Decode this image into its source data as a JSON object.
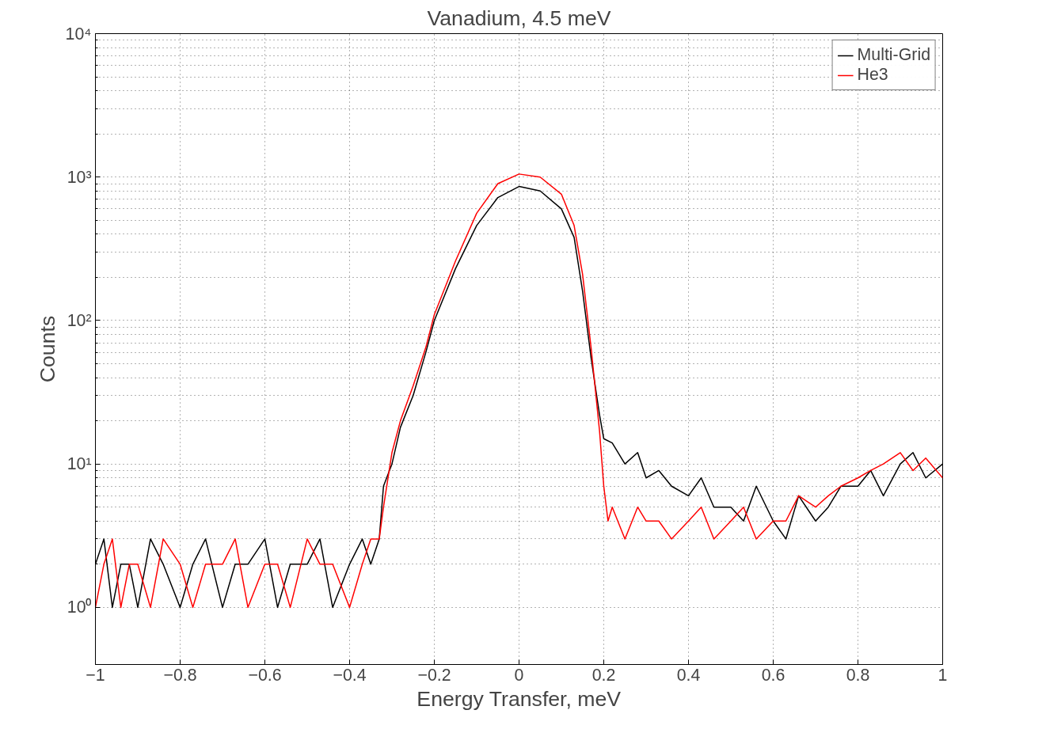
{
  "chart_data": {
    "type": "line",
    "title": "Vanadium, 4.5 meV",
    "xlabel": "Energy Transfer, meV",
    "ylabel": "Counts",
    "series": [
      {
        "name": "Multi-Grid",
        "color": "#000000",
        "x": [
          -1,
          -0.98,
          -0.96,
          -0.94,
          -0.92,
          -0.9,
          -0.87,
          -0.84,
          -0.8,
          -0.77,
          -0.74,
          -0.7,
          -0.67,
          -0.64,
          -0.6,
          -0.57,
          -0.54,
          -0.5,
          -0.47,
          -0.44,
          -0.4,
          -0.37,
          -0.35,
          -0.33,
          -0.32,
          -0.3,
          -0.28,
          -0.25,
          -0.22,
          -0.2,
          -0.15,
          -0.1,
          -0.05,
          0,
          0.05,
          0.1,
          0.13,
          0.15,
          0.17,
          0.19,
          0.2,
          0.22,
          0.25,
          0.28,
          0.3,
          0.33,
          0.36,
          0.4,
          0.43,
          0.46,
          0.5,
          0.53,
          0.56,
          0.6,
          0.63,
          0.66,
          0.7,
          0.73,
          0.76,
          0.8,
          0.83,
          0.86,
          0.9,
          0.93,
          0.96,
          1
        ],
        "values": [
          2,
          3,
          1,
          2,
          2,
          1,
          3,
          2,
          1,
          2,
          3,
          1,
          2,
          2,
          3,
          1,
          2,
          2,
          3,
          1,
          2,
          3,
          2,
          3,
          7,
          10,
          18,
          30,
          60,
          100,
          230,
          460,
          720,
          860,
          800,
          600,
          380,
          160,
          55,
          22,
          15,
          14,
          10,
          12,
          8,
          9,
          7,
          6,
          8,
          5,
          5,
          4,
          7,
          4,
          3,
          6,
          4,
          5,
          7,
          7,
          9,
          6,
          10,
          12,
          8,
          10
        ]
      },
      {
        "name": "He3",
        "color": "#ff0000",
        "x": [
          -1,
          -0.98,
          -0.96,
          -0.94,
          -0.92,
          -0.9,
          -0.87,
          -0.84,
          -0.8,
          -0.77,
          -0.74,
          -0.7,
          -0.67,
          -0.64,
          -0.6,
          -0.57,
          -0.54,
          -0.5,
          -0.47,
          -0.44,
          -0.4,
          -0.37,
          -0.35,
          -0.33,
          -0.32,
          -0.3,
          -0.28,
          -0.25,
          -0.22,
          -0.2,
          -0.15,
          -0.1,
          -0.05,
          0,
          0.05,
          0.1,
          0.13,
          0.15,
          0.17,
          0.19,
          0.2,
          0.21,
          0.22,
          0.25,
          0.28,
          0.3,
          0.33,
          0.36,
          0.4,
          0.43,
          0.46,
          0.5,
          0.53,
          0.56,
          0.6,
          0.63,
          0.66,
          0.7,
          0.73,
          0.76,
          0.8,
          0.83,
          0.86,
          0.9,
          0.93,
          0.96,
          1
        ],
        "values": [
          1,
          2,
          3,
          1,
          2,
          2,
          1,
          3,
          2,
          1,
          2,
          2,
          3,
          1,
          2,
          2,
          1,
          3,
          2,
          2,
          1,
          2,
          3,
          3,
          5,
          12,
          20,
          35,
          65,
          110,
          260,
          560,
          900,
          1050,
          1000,
          760,
          460,
          210,
          65,
          17,
          7,
          4,
          5,
          3,
          5,
          4,
          4,
          3,
          4,
          5,
          3,
          4,
          5,
          3,
          4,
          4,
          6,
          5,
          6,
          7,
          8,
          9,
          10,
          12,
          9,
          11,
          8
        ]
      }
    ],
    "xlim": [
      -1,
      1
    ],
    "ylim": [
      0.4,
      10000
    ],
    "xticks": [
      -1,
      -0.8,
      -0.6,
      -0.4,
      -0.2,
      0,
      0.2,
      0.4,
      0.6,
      0.8,
      1
    ],
    "yticks": [
      {
        "value": 1,
        "label": "10⁰"
      },
      {
        "value": 10,
        "label": "10¹"
      },
      {
        "value": 100,
        "label": "10²"
      },
      {
        "value": 1000,
        "label": "10³"
      },
      {
        "value": 10000,
        "label": "10⁴"
      }
    ],
    "log": "y",
    "grid": true,
    "legend": "top right",
    "line_style": "solid"
  }
}
